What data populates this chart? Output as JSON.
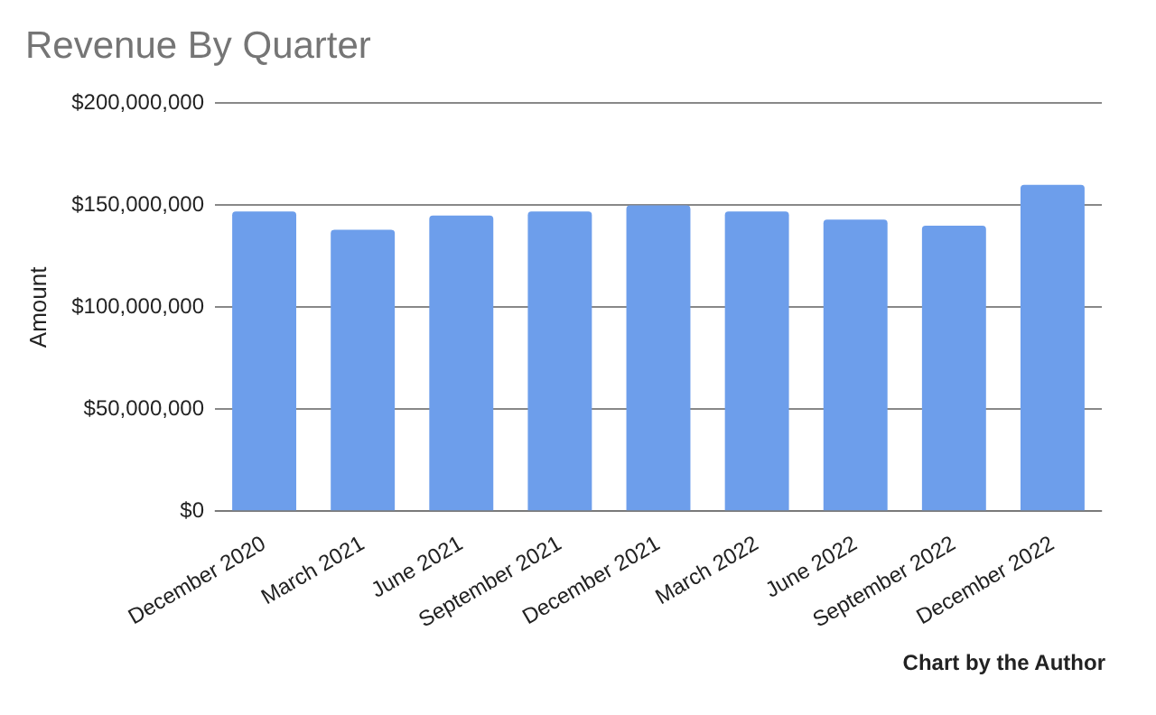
{
  "chart_data": {
    "type": "bar",
    "title": "Revenue By Quarter",
    "ylabel": "Amount",
    "categories": [
      "December 2020",
      "March 2021",
      "June 2021",
      "September 2021",
      "December 2021",
      "March 2022",
      "June 2022",
      "September 2022",
      "December 2022"
    ],
    "values": [
      147000000,
      138000000,
      145000000,
      147000000,
      150000000,
      147000000,
      143000000,
      140000000,
      160000000
    ],
    "color": "#6d9eeb",
    "ylim": [
      0,
      200000000
    ],
    "yticks": [
      {
        "value": 0,
        "label": "$0"
      },
      {
        "value": 50000000,
        "label": "$50,000,000"
      },
      {
        "value": 100000000,
        "label": "$100,000,000"
      },
      {
        "value": 150000000,
        "label": "$150,000,000"
      },
      {
        "value": 200000000,
        "label": "$200,000,000"
      }
    ],
    "grid": "y",
    "annotations": [
      "Chart by the Author"
    ]
  }
}
